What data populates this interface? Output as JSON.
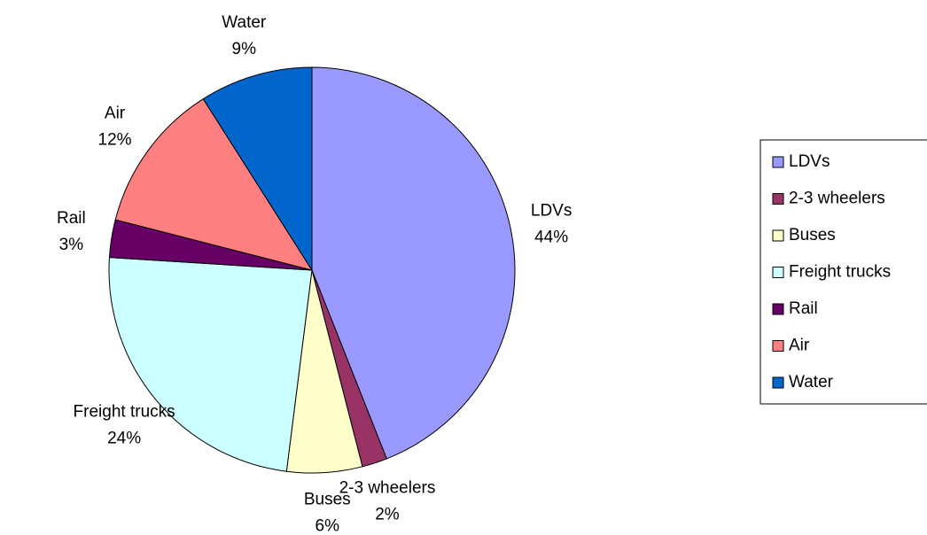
{
  "chart_data": {
    "type": "pie",
    "categories": [
      "LDVs",
      "2-3 wheelers",
      "Buses",
      "Freight trucks",
      "Rail",
      "Air",
      "Water"
    ],
    "values": [
      44,
      2,
      6,
      24,
      3,
      12,
      9
    ],
    "value_labels": [
      "44%",
      "2%",
      "6%",
      "24%",
      "3%",
      "12%",
      "9%"
    ],
    "colors": [
      "#9999ff",
      "#993366",
      "#ffffcc",
      "#ccffff",
      "#660066",
      "#ff8080",
      "#0066cc"
    ],
    "legend": "right"
  }
}
